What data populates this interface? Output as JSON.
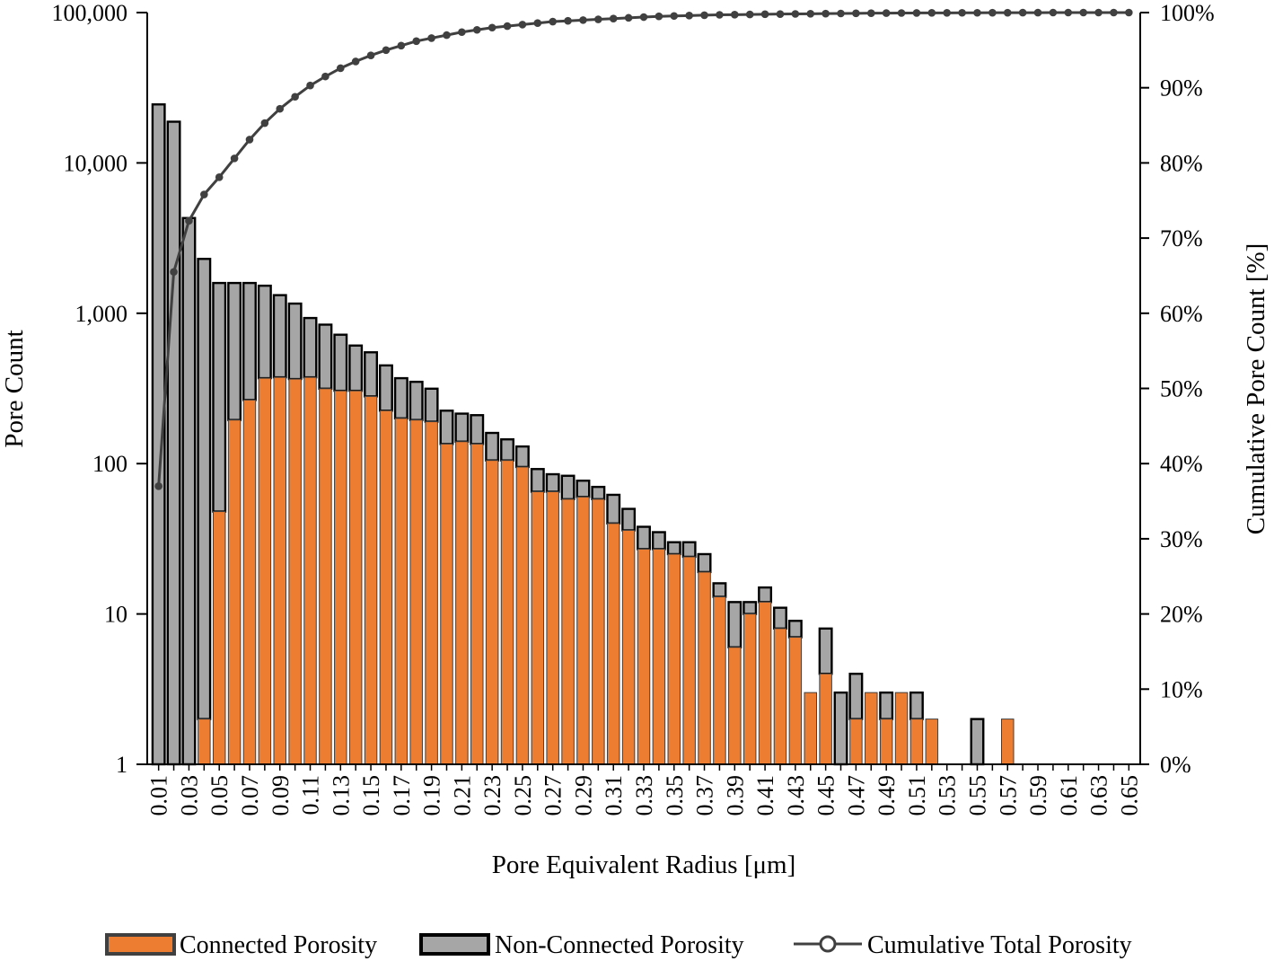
{
  "chart_data": {
    "type": "bar",
    "stacked": true,
    "y_scale": "log",
    "xlabel": "Pore Equivalent Radius [μm]",
    "ylabel": "Pore Count",
    "y2label": "Cumulative Pore Count [%]",
    "ylim": [
      1,
      100000
    ],
    "y2lim": [
      0,
      100
    ],
    "yticks": [
      "1",
      "10",
      "100",
      "1,000",
      "10,000",
      "100,000"
    ],
    "y2ticks": [
      "0%",
      "10%",
      "20%",
      "30%",
      "40%",
      "50%",
      "60%",
      "70%",
      "80%",
      "90%",
      "100%"
    ],
    "categories": [
      "0.01",
      "0.02",
      "0.03",
      "0.04",
      "0.05",
      "0.06",
      "0.07",
      "0.08",
      "0.09",
      "0.10",
      "0.11",
      "0.12",
      "0.13",
      "0.14",
      "0.15",
      "0.16",
      "0.17",
      "0.18",
      "0.19",
      "0.20",
      "0.21",
      "0.22",
      "0.23",
      "0.24",
      "0.25",
      "0.26",
      "0.27",
      "0.28",
      "0.29",
      "0.30",
      "0.31",
      "0.32",
      "0.33",
      "0.34",
      "0.35",
      "0.36",
      "0.37",
      "0.38",
      "0.39",
      "0.40",
      "0.41",
      "0.42",
      "0.43",
      "0.44",
      "0.45",
      "0.46",
      "0.47",
      "0.48",
      "0.49",
      "0.50",
      "0.51",
      "0.52",
      "0.53",
      "0.54",
      "0.55",
      "0.56",
      "0.57",
      "0.58",
      "0.59",
      "0.60",
      "0.61",
      "0.62",
      "0.63",
      "0.64",
      "0.65"
    ],
    "tick_labels_shown": [
      "0.01",
      "0.03",
      "0.05",
      "0.07",
      "0.09",
      "0.11",
      "0.13",
      "0.15",
      "0.17",
      "0.19",
      "0.21",
      "0.23",
      "0.25",
      "0.27",
      "0.29",
      "0.31",
      "0.33",
      "0.35",
      "0.37",
      "0.39",
      "0.41",
      "0.43",
      "0.45",
      "0.47",
      "0.49",
      "0.51",
      "0.53",
      "0.55",
      "0.57",
      "0.59",
      "0.61",
      "0.63",
      "0.65"
    ],
    "series": [
      {
        "name": "Connected Porosity",
        "color": "#ED7D31",
        "values": [
          0,
          0,
          0,
          2,
          48,
          195,
          265,
          370,
          375,
          365,
          375,
          315,
          305,
          305,
          280,
          225,
          200,
          195,
          190,
          135,
          140,
          135,
          105,
          105,
          95,
          65,
          65,
          58,
          60,
          58,
          40,
          36,
          27,
          27,
          25,
          24,
          19,
          13,
          6,
          10,
          12,
          8,
          7,
          3,
          4,
          0,
          2,
          3,
          2,
          3,
          2,
          2,
          0,
          0,
          0,
          0,
          2,
          0,
          0,
          0,
          0,
          0,
          0,
          0,
          0
        ]
      },
      {
        "name": "Non-Connected Porosity",
        "color": "#A6A6A6",
        "values": [
          24500,
          18800,
          4300,
          2298,
          1542,
          1395,
          1325,
          1155,
          945,
          795,
          555,
          525,
          415,
          305,
          270,
          225,
          170,
          155,
          125,
          90,
          75,
          75,
          55,
          40,
          35,
          27,
          20,
          25,
          17,
          12,
          22,
          14,
          11,
          8,
          5,
          6,
          6,
          3,
          6,
          2,
          3,
          3,
          2,
          0,
          4,
          3,
          2,
          0,
          1,
          0,
          1,
          0,
          0,
          0,
          2,
          0,
          0,
          0,
          0,
          0,
          0,
          0,
          0,
          0,
          0
        ]
      }
    ],
    "line_series": {
      "name": "Cumulative Total Porosity",
      "color": "#404040",
      "values_percent": [
        37,
        65.5,
        72.3,
        75.8,
        78.1,
        80.6,
        83.1,
        85.3,
        87.2,
        88.8,
        90.3,
        91.5,
        92.6,
        93.5,
        94.3,
        95.0,
        95.6,
        96.2,
        96.6,
        97.0,
        97.4,
        97.7,
        98.0,
        98.2,
        98.4,
        98.6,
        98.8,
        98.9,
        99.0,
        99.1,
        99.2,
        99.3,
        99.4,
        99.5,
        99.55,
        99.6,
        99.65,
        99.7,
        99.72,
        99.75,
        99.78,
        99.8,
        99.82,
        99.84,
        99.86,
        99.88,
        99.9,
        99.92,
        99.93,
        99.94,
        99.95,
        99.96,
        99.96,
        99.97,
        99.97,
        99.98,
        99.98,
        99.99,
        99.99,
        100,
        100,
        100,
        100,
        100,
        100
      ]
    },
    "legend": {
      "placement": "bottom",
      "entries": [
        "Connected Porosity",
        "Non-Connected Porosity",
        "Cumulative Total Porosity"
      ]
    },
    "grid": false
  }
}
